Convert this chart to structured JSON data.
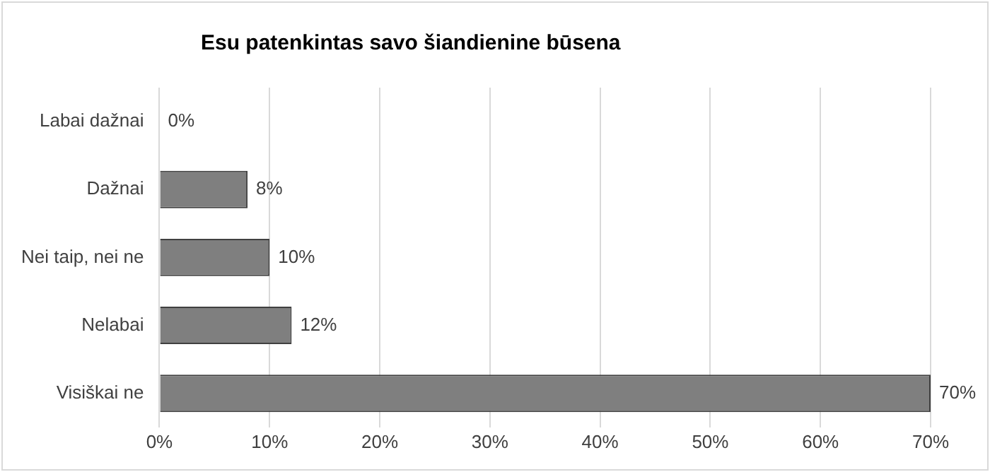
{
  "chart_data": {
    "type": "bar",
    "orientation": "horizontal",
    "title": "Esu patenkintas savo šiandienine būsena",
    "categories": [
      "Labai dažnai",
      "Dažnai",
      "Nei taip, nei ne",
      "Nelabai",
      "Visiškai ne"
    ],
    "values": [
      0,
      8,
      10,
      12,
      70
    ],
    "value_labels": [
      "0%",
      "8%",
      "10%",
      "12%",
      "70%"
    ],
    "color": "#7f7f7f",
    "xlim": [
      0,
      70
    ],
    "xticks": [
      {
        "value": 0,
        "label": "0%"
      },
      {
        "value": 10,
        "label": "10%"
      },
      {
        "value": 20,
        "label": "20%"
      },
      {
        "value": 30,
        "label": "30%"
      },
      {
        "value": 40,
        "label": "40%"
      },
      {
        "value": 50,
        "label": "50%"
      },
      {
        "value": 60,
        "label": "60%"
      },
      {
        "value": 70,
        "label": "70%"
      }
    ],
    "grid": "x",
    "legend": false
  }
}
